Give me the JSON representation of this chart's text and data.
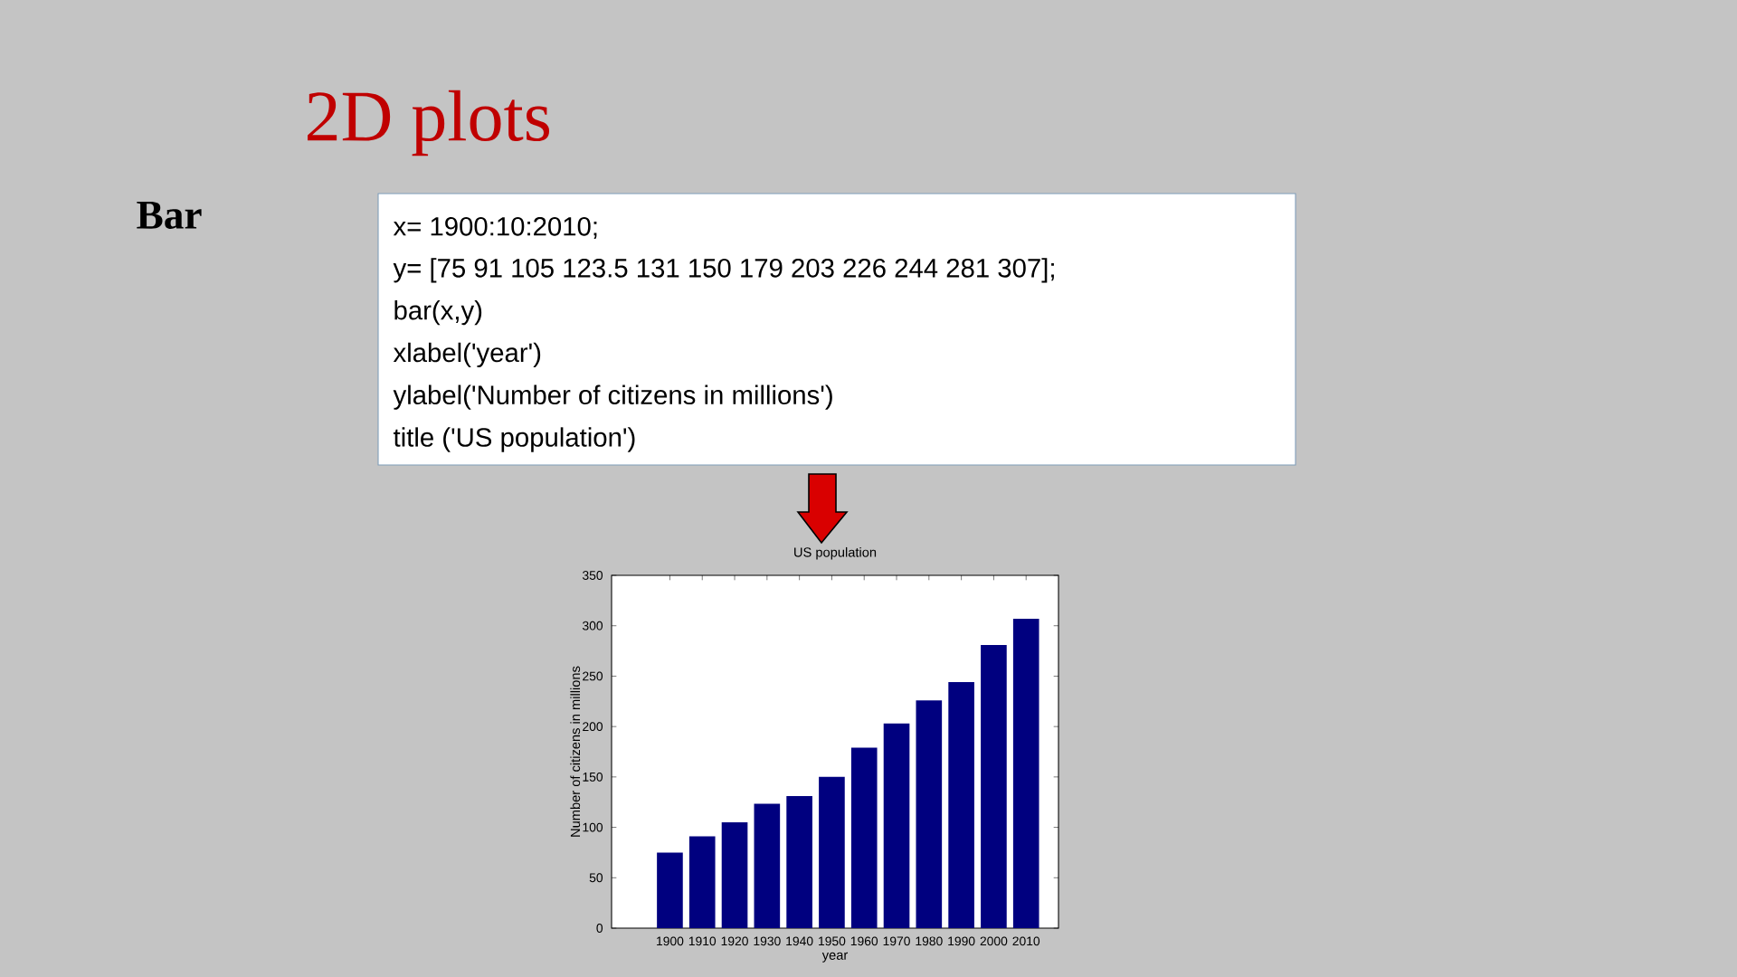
{
  "chart_data": {
    "type": "bar",
    "title": "US population",
    "subtitle": "2D plots",
    "xlabel": "year",
    "ylabel": "Number of citizens in millions",
    "categories": [
      "1900",
      "1910",
      "1920",
      "1930",
      "1940",
      "1950",
      "1960",
      "1970",
      "1980",
      "1990",
      "2000",
      "2010"
    ],
    "values": [
      75,
      91,
      105,
      123.5,
      131,
      150,
      179,
      203,
      226,
      244,
      281,
      307
    ],
    "color": "#00007f",
    "ylim": [
      0,
      350
    ],
    "yticks": [
      0,
      50,
      100,
      150,
      200,
      250,
      300,
      350
    ],
    "annotations": [
      "Bar",
      "x= 1900:10:2010;",
      "y= [75 91 105 123.5 131 150 179 203 226 244 281 307];",
      "bar(x,y)",
      "xlabel('year')",
      "ylabel('Number of citizens in millions')",
      "title ('US population')"
    ]
  }
}
